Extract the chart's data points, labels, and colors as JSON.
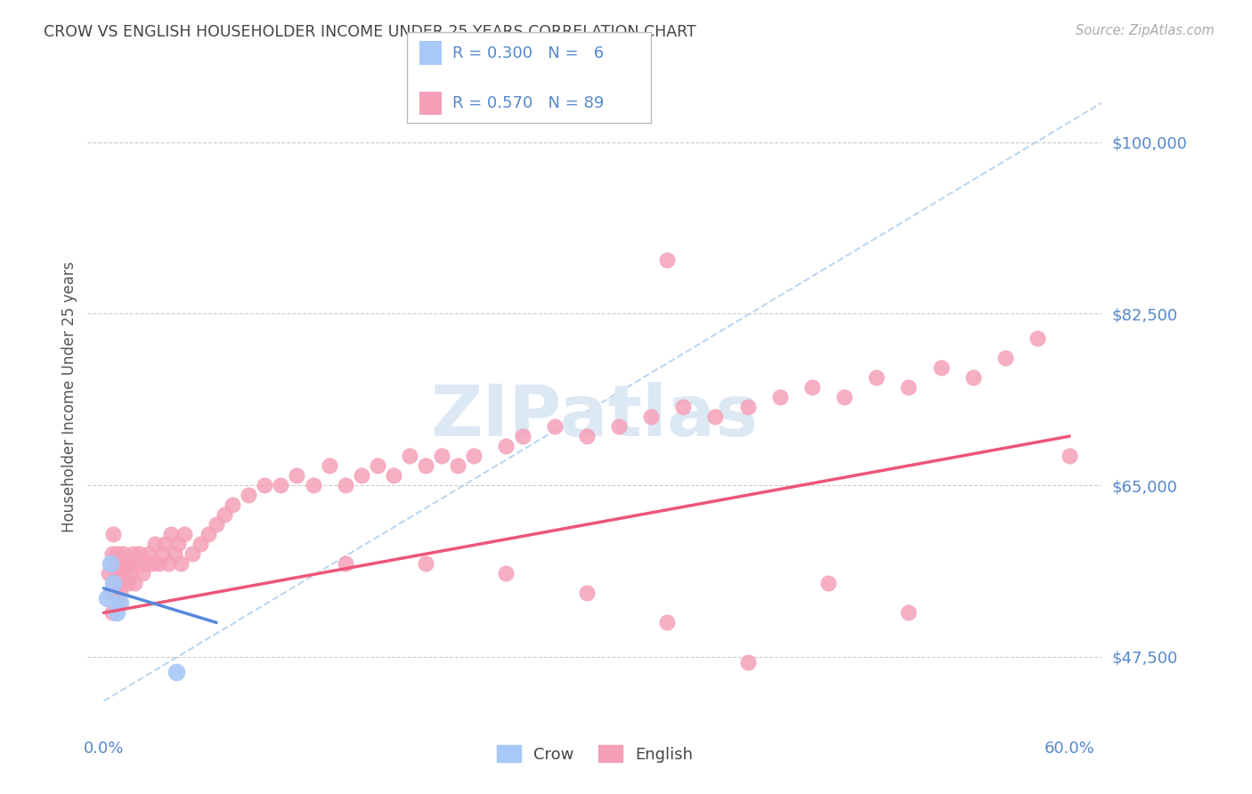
{
  "title": "CROW VS ENGLISH HOUSEHOLDER INCOME UNDER 25 YEARS CORRELATION CHART",
  "source": "Source: ZipAtlas.com",
  "ylabel": "Householder Income Under 25 years",
  "xlim": [
    -0.01,
    0.62
  ],
  "ylim": [
    40000,
    108000
  ],
  "yticks": [
    47500,
    65000,
    82500,
    100000
  ],
  "ytick_labels": [
    "$47,500",
    "$65,000",
    "$82,500",
    "$100,000"
  ],
  "xtick_positions": [
    0.0,
    0.6
  ],
  "xtick_labels": [
    "0.0%",
    "60.0%"
  ],
  "legend_crow_R": "0.300",
  "legend_crow_N": "  6",
  "legend_english_R": "0.570",
  "legend_english_N": "89",
  "crow_color": "#a8c8f8",
  "english_color": "#f5a0b8",
  "crow_line_color": "#5588dd",
  "english_line_color": "#ee5577",
  "dashed_line_color": "#aaccee",
  "watermark_color": "#dde8f5",
  "background_color": "#ffffff",
  "grid_color": "#cccccc",
  "axis_label_color": "#5588cc",
  "title_color": "#444444",
  "source_color": "#aaaaaa",
  "crow_x": [
    0.002,
    0.004,
    0.006,
    0.008,
    0.01,
    0.045
  ],
  "crow_y": [
    53500,
    57000,
    55000,
    52000,
    53000,
    46000
  ],
  "english_x": [
    0.003,
    0.004,
    0.005,
    0.005,
    0.006,
    0.006,
    0.007,
    0.007,
    0.008,
    0.008,
    0.009,
    0.009,
    0.01,
    0.01,
    0.011,
    0.012,
    0.012,
    0.013,
    0.014,
    0.015,
    0.016,
    0.017,
    0.018,
    0.019,
    0.02,
    0.022,
    0.024,
    0.026,
    0.028,
    0.03,
    0.032,
    0.034,
    0.036,
    0.038,
    0.04,
    0.042,
    0.044,
    0.046,
    0.048,
    0.05,
    0.055,
    0.06,
    0.065,
    0.07,
    0.075,
    0.08,
    0.09,
    0.1,
    0.11,
    0.12,
    0.13,
    0.14,
    0.15,
    0.16,
    0.17,
    0.18,
    0.19,
    0.2,
    0.21,
    0.22,
    0.23,
    0.25,
    0.26,
    0.28,
    0.3,
    0.32,
    0.34,
    0.36,
    0.38,
    0.4,
    0.42,
    0.44,
    0.46,
    0.48,
    0.5,
    0.52,
    0.54,
    0.56,
    0.58,
    0.6,
    0.15,
    0.2,
    0.25,
    0.3,
    0.35,
    0.4,
    0.45,
    0.5,
    0.35
  ],
  "english_y": [
    56000,
    54000,
    58000,
    52000,
    55000,
    60000,
    54000,
    57000,
    56000,
    58000,
    53000,
    55000,
    57000,
    54000,
    56000,
    55000,
    58000,
    56000,
    57000,
    55000,
    57000,
    56000,
    58000,
    55000,
    57000,
    58000,
    56000,
    57000,
    58000,
    57000,
    59000,
    57000,
    58000,
    59000,
    57000,
    60000,
    58000,
    59000,
    57000,
    60000,
    58000,
    59000,
    60000,
    61000,
    62000,
    63000,
    64000,
    65000,
    65000,
    66000,
    65000,
    67000,
    65000,
    66000,
    67000,
    66000,
    68000,
    67000,
    68000,
    67000,
    68000,
    69000,
    70000,
    71000,
    70000,
    71000,
    72000,
    73000,
    72000,
    73000,
    74000,
    75000,
    74000,
    76000,
    75000,
    77000,
    76000,
    78000,
    80000,
    68000,
    57000,
    57000,
    56000,
    54000,
    51000,
    47000,
    55000,
    52000,
    88000
  ],
  "crow_regline_x": [
    0.0,
    0.07
  ],
  "crow_regline_y": [
    54500,
    51000
  ],
  "english_regline_x": [
    0.0,
    0.6
  ],
  "english_regline_y": [
    52000,
    70000
  ],
  "dash_line_x": [
    0.0,
    0.62
  ],
  "dash_line_y": [
    43000,
    104000
  ]
}
